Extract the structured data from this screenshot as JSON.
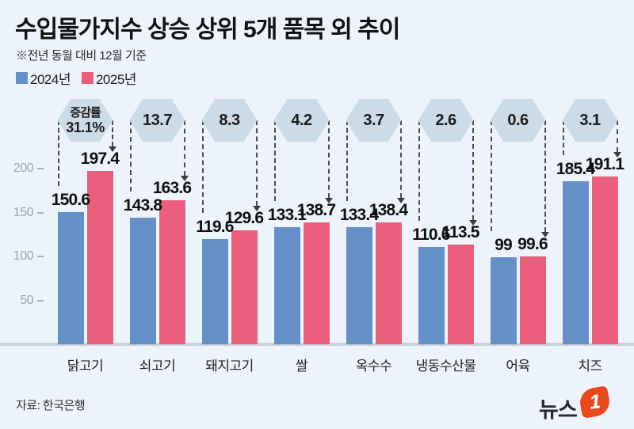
{
  "header": {
    "title": "수입물가지수 상승 상위 5개 품목 외 추이",
    "subtitle": "※전년 동월 대비 12월 기준"
  },
  "chart_data": {
    "type": "bar",
    "categories": [
      "닭고기",
      "쇠고기",
      "돼지고기",
      "쌀",
      "옥수수",
      "냉동수산물",
      "어육",
      "치즈"
    ],
    "series": [
      {
        "name": "2024년",
        "color": "#6590c7",
        "values": [
          150.6,
          143.8,
          119.6,
          133.1,
          133.4,
          110.6,
          99,
          185.4
        ]
      },
      {
        "name": "2025년",
        "color": "#ea607c",
        "values": [
          197.4,
          163.6,
          129.6,
          138.7,
          138.4,
          113.5,
          99.6,
          191.1
        ]
      }
    ],
    "change_rates": {
      "label": "증감률",
      "values": [
        "31.1%",
        "13.7",
        "8.3",
        "4.2",
        "3.7",
        "2.6",
        "0.6",
        "3.1"
      ]
    },
    "yticks": [
      200,
      150,
      100,
      50
    ],
    "ylim": [
      0,
      210
    ],
    "grid": false,
    "legend_position": "top-left",
    "badge_color": "#ccdbe8"
  },
  "footer": {
    "source": "자료: 한국은행",
    "logo": {
      "text": "뉴스",
      "badge": "1",
      "badge_color": "#e9491d"
    }
  }
}
